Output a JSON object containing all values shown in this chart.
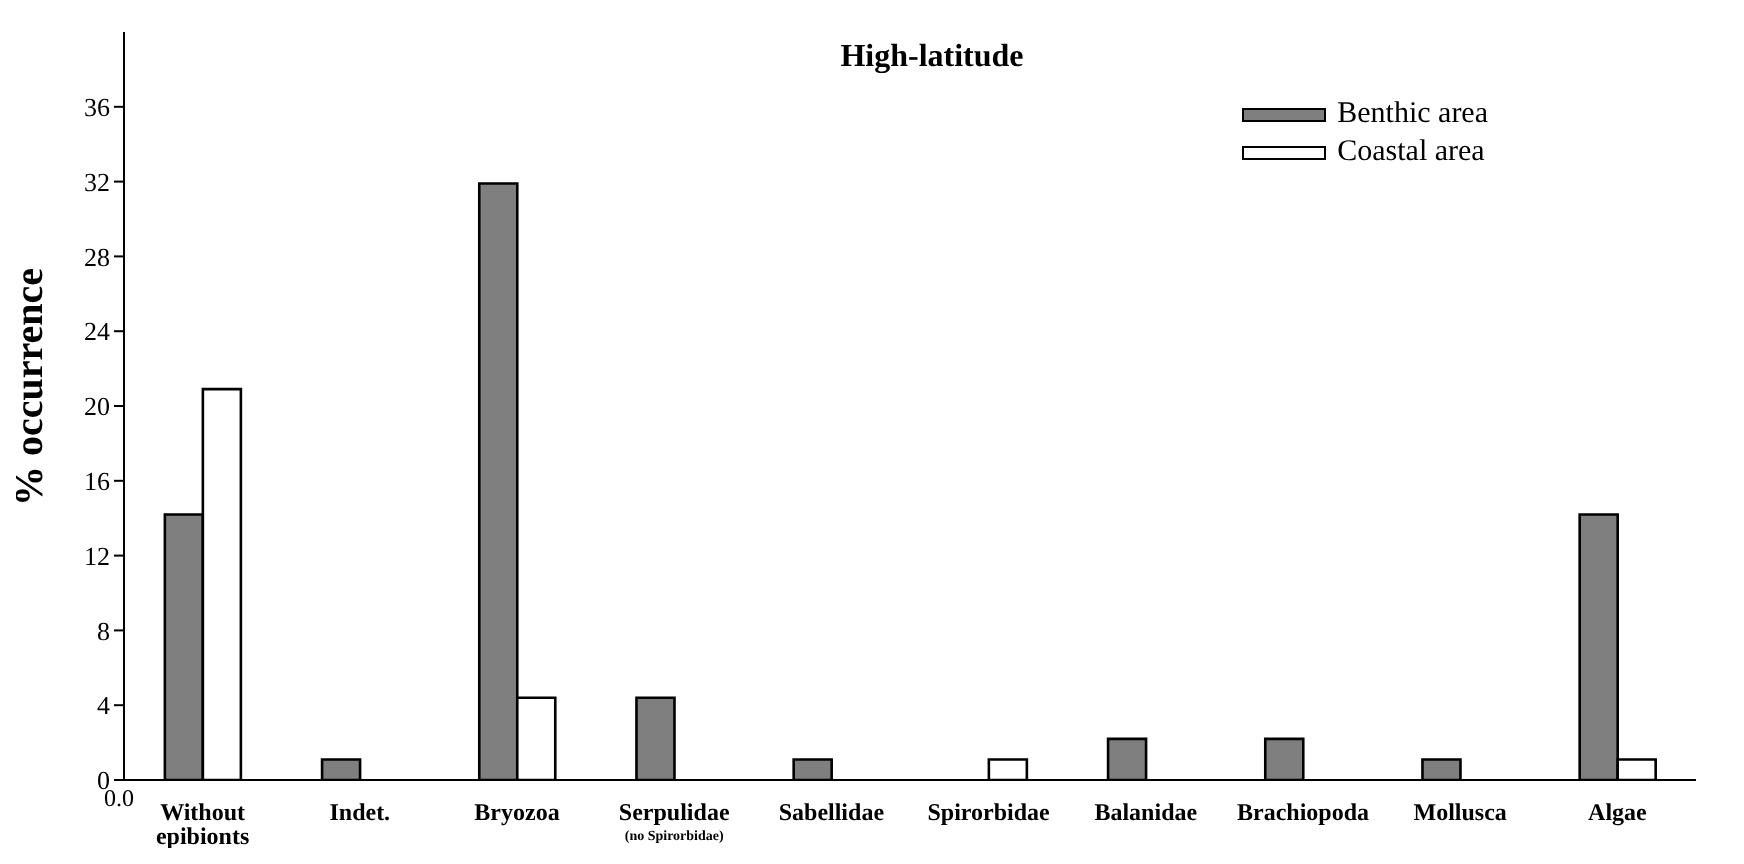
{
  "chart_data": {
    "type": "bar",
    "title": "High-latitude",
    "ylabel": "% occurrence",
    "categories": [
      "Without epibionts",
      "Indet.",
      "Bryozoa",
      "Serpulidae (no Spirorbidae)",
      "Sabellidae",
      "Spirorbidae",
      "Balanidae",
      "Brachiopoda",
      "Mollusca",
      "Algae"
    ],
    "series": [
      {
        "name": "Benthic area",
        "color": "#7f7f7f",
        "values": [
          14.2,
          1.1,
          31.9,
          4.4,
          1.1,
          0,
          2.2,
          2.2,
          1.1,
          14.2
        ]
      },
      {
        "name": "Coastal area",
        "color": "#ffffff",
        "values": [
          20.9,
          0,
          4.4,
          0,
          0,
          1.1,
          0,
          0,
          0,
          1.1
        ]
      }
    ],
    "ylim": [
      0,
      40
    ],
    "yticks": [
      0,
      4,
      8,
      12,
      16,
      20,
      24,
      28,
      32,
      36
    ],
    "annotations": [
      "0.0"
    ],
    "legend": "top right"
  }
}
